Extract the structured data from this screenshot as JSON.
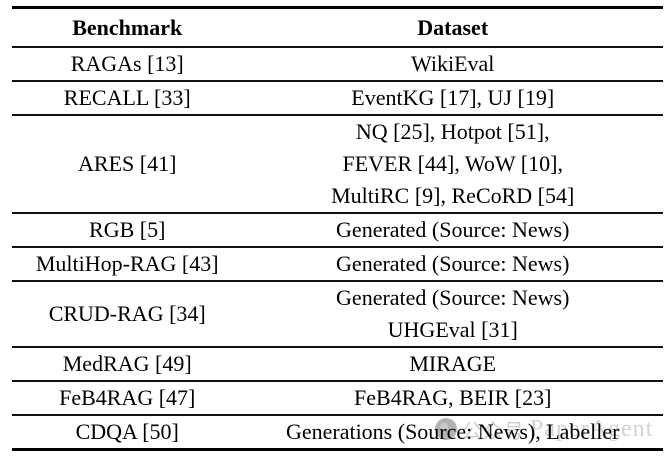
{
  "table": {
    "columns": [
      "Benchmark",
      "Dataset"
    ],
    "rows": [
      {
        "benchmark": "RAGAs [13]",
        "dataset": [
          "WikiEval"
        ]
      },
      {
        "benchmark": "RECALL [33]",
        "dataset": [
          "EventKG [17], UJ [19]"
        ]
      },
      {
        "benchmark": "ARES [41]",
        "dataset": [
          "NQ [25], Hotpot [51],",
          "FEVER [44], WoW [10],",
          "MultiRC [9], ReCoRD [54]"
        ]
      },
      {
        "benchmark": "RGB [5]",
        "dataset": [
          "Generated (Source: News)"
        ]
      },
      {
        "benchmark": "MultiHop-RAG [43]",
        "dataset": [
          "Generated (Source: News)"
        ]
      },
      {
        "benchmark": "CRUD-RAG [34]",
        "dataset": [
          "Generated (Source: News)",
          "UHGEval [31]"
        ]
      },
      {
        "benchmark": "MedRAG [49]",
        "dataset": [
          "MIRAGE"
        ]
      },
      {
        "benchmark": "FeB4RAG [47]",
        "dataset": [
          "FeB4RAG, BEIR [23]"
        ]
      },
      {
        "benchmark": "CDQA [50]",
        "dataset": [
          "Generations (Source: News), Labeller"
        ]
      }
    ]
  },
  "watermark": {
    "cn": "公众号",
    "en": "PaperAgent",
    "color": "#b0b0b0"
  },
  "colors": {
    "text": "#000000",
    "rule": "#101010",
    "background": "#ffffff"
  }
}
